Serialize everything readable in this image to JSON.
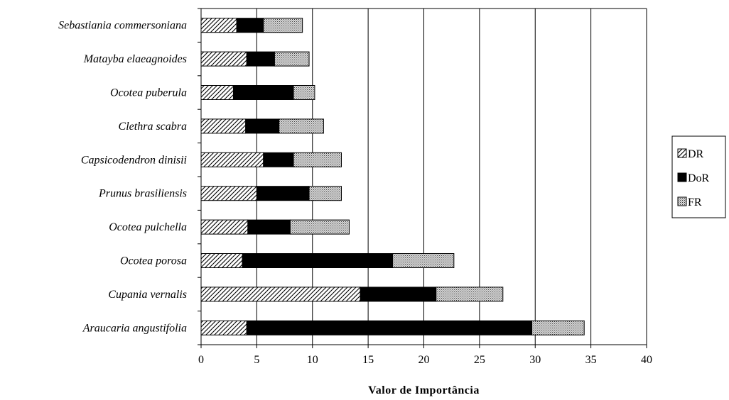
{
  "chart_data": {
    "type": "bar",
    "orientation": "horizontal",
    "stacked": true,
    "categories": [
      "Araucaria angustifolia",
      "Cupania vernalis",
      "Ocotea porosa",
      "Ocotea pulchella",
      "Prunus brasiliensis",
      "Capsicodendron dinisii",
      "Clethra scabra",
      "Ocotea puberula",
      "Matayba elaeagnoides",
      "Sebastiania commersoniana"
    ],
    "series": [
      {
        "name": "DR",
        "values": [
          4.1,
          14.3,
          3.7,
          4.2,
          5.0,
          5.6,
          4.0,
          2.9,
          4.1,
          3.2
        ]
      },
      {
        "name": "DoR",
        "values": [
          25.6,
          6.8,
          13.5,
          3.8,
          4.7,
          2.7,
          3.0,
          5.4,
          2.5,
          2.4
        ]
      },
      {
        "name": "FR",
        "values": [
          4.7,
          6.0,
          5.5,
          5.3,
          2.9,
          4.3,
          4.0,
          1.9,
          3.1,
          3.5
        ]
      }
    ],
    "xlabel": "Valor de Importância",
    "ylabel": "",
    "xlim": [
      0,
      40
    ],
    "xticks": [
      0,
      5,
      10,
      15,
      20,
      25,
      30,
      35,
      40
    ],
    "grid": "vertical",
    "legend": "right",
    "colors": {
      "DoR": "#000000",
      "grid": "#000000"
    },
    "patterns": {
      "DR": "diagonal-hatch",
      "DoR": "solid",
      "FR": "crosshatch"
    }
  }
}
